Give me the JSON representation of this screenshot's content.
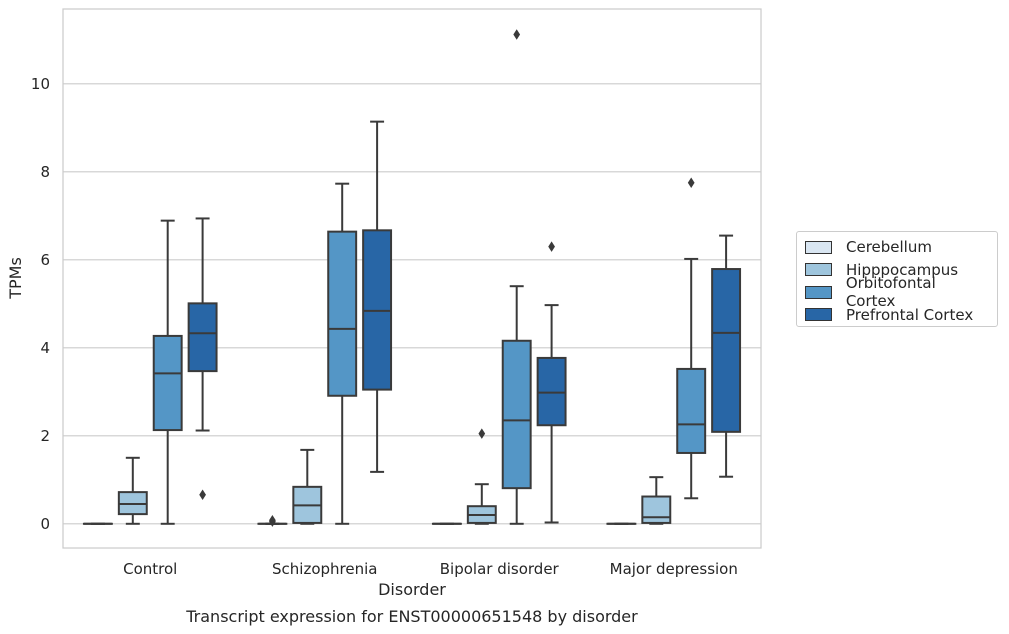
{
  "caption": "Transcript expression for ENST00000651548 by disorder",
  "chart_data": {
    "type": "box",
    "xlabel": "Disorder",
    "ylabel": "TPMs",
    "ylim": [
      -0.55,
      11.7
    ],
    "yticks": [
      0,
      2,
      4,
      6,
      8,
      10
    ],
    "grid": "horizontal",
    "legend_placement": "right",
    "categories": [
      "Control",
      "Schizophrenia",
      "Bipolar disorder",
      "Major depression"
    ],
    "series": [
      {
        "name": "Cerebellum",
        "color": "#d9e6f2",
        "boxes": [
          {
            "whisker_low": 0,
            "q1": 0,
            "median": 0,
            "q3": 0,
            "whisker_high": 0,
            "outliers": []
          },
          {
            "whisker_low": 0,
            "q1": 0,
            "median": 0,
            "q3": 0,
            "whisker_high": 0,
            "outliers": [
              0.05,
              0.08
            ]
          },
          {
            "whisker_low": 0,
            "q1": 0,
            "median": 0,
            "q3": 0,
            "whisker_high": 0,
            "outliers": []
          },
          {
            "whisker_low": 0,
            "q1": 0,
            "median": 0,
            "q3": 0,
            "whisker_high": 0,
            "outliers": []
          }
        ]
      },
      {
        "name": "Hipppocampus",
        "color": "#9ec5dd",
        "boxes": [
          {
            "whisker_low": 0,
            "q1": 0.22,
            "median": 0.45,
            "q3": 0.72,
            "whisker_high": 1.5,
            "outliers": []
          },
          {
            "whisker_low": 0,
            "q1": 0.02,
            "median": 0.42,
            "q3": 0.84,
            "whisker_high": 1.68,
            "outliers": []
          },
          {
            "whisker_low": 0,
            "q1": 0.02,
            "median": 0.2,
            "q3": 0.4,
            "whisker_high": 0.9,
            "outliers": [
              2.05
            ]
          },
          {
            "whisker_low": 0,
            "q1": 0.02,
            "median": 0.15,
            "q3": 0.62,
            "whisker_high": 1.06,
            "outliers": []
          }
        ]
      },
      {
        "name": "Orbitofontal Cortex",
        "color": "#5496c6",
        "boxes": [
          {
            "whisker_low": 0,
            "q1": 2.13,
            "median": 3.42,
            "q3": 4.27,
            "whisker_high": 6.89,
            "outliers": []
          },
          {
            "whisker_low": 0,
            "q1": 2.91,
            "median": 4.43,
            "q3": 6.64,
            "whisker_high": 7.73,
            "outliers": []
          },
          {
            "whisker_low": 0,
            "q1": 0.81,
            "median": 2.35,
            "q3": 4.16,
            "whisker_high": 5.4,
            "outliers": [
              11.12
            ]
          },
          {
            "whisker_low": 0.58,
            "q1": 1.61,
            "median": 2.26,
            "q3": 3.52,
            "whisker_high": 6.02,
            "outliers": [
              7.75
            ]
          }
        ]
      },
      {
        "name": "Prefrontal Cortex",
        "color": "#2866a6",
        "boxes": [
          {
            "whisker_low": 2.12,
            "q1": 3.47,
            "median": 4.33,
            "q3": 5.01,
            "whisker_high": 6.94,
            "outliers": [
              0.66
            ]
          },
          {
            "whisker_low": 1.18,
            "q1": 3.05,
            "median": 4.84,
            "q3": 6.67,
            "whisker_high": 9.14,
            "outliers": []
          },
          {
            "whisker_low": 0.03,
            "q1": 2.24,
            "median": 2.98,
            "q3": 3.77,
            "whisker_high": 4.97,
            "outliers": [
              6.3
            ]
          },
          {
            "whisker_low": 1.07,
            "q1": 2.09,
            "median": 4.34,
            "q3": 5.79,
            "whisker_high": 6.55,
            "outliers": []
          }
        ]
      }
    ]
  }
}
